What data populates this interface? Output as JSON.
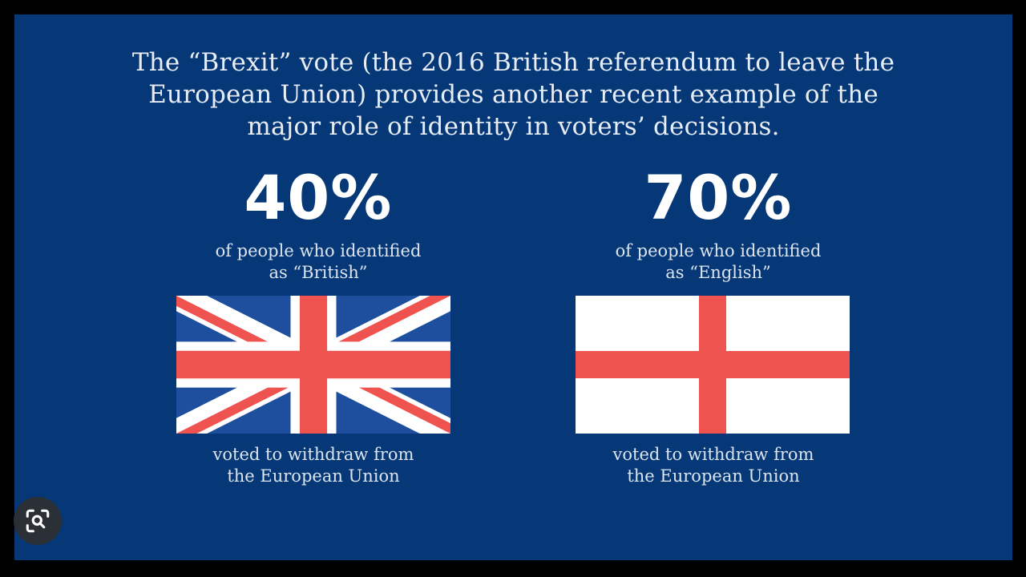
{
  "intro": {
    "lines": [
      "The “Brexit” vote (the 2016 British referendum to leave the",
      "European Union) provides another recent example of the",
      "major role of identity in voters’ decisions."
    ]
  },
  "stats": [
    {
      "percent": "40%",
      "identity_lines": [
        "of people who identified",
        "as “British”"
      ],
      "flag_icon": "union-jack-flag",
      "outcome_lines": [
        "voted to withdraw from",
        "the European Union"
      ]
    },
    {
      "percent": "70%",
      "identity_lines": [
        "of people who identified",
        "as “English”"
      ],
      "flag_icon": "st-george-cross-flag",
      "outcome_lines": [
        "voted to withdraw from",
        "the European Union"
      ]
    }
  ],
  "overlay": {
    "icon": "lens-search-icon"
  },
  "colors": {
    "background": "#063877",
    "flag_red": "#EF5350",
    "flag_blue": "#1D4F9E",
    "flag_white": "#FFFFFF"
  }
}
